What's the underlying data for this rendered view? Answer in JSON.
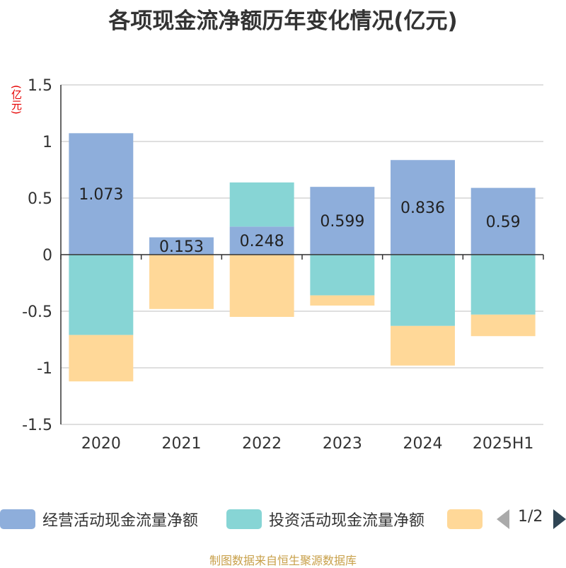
{
  "title": "各项现金流净额历年变化情况(亿元)",
  "unit_label": "(亿元)",
  "source": "制图数据来自恒生聚源数据库",
  "legend": {
    "items": [
      {
        "label": "经营活动现金流量净额",
        "color": "#8eaedb"
      },
      {
        "label": "投资活动现金流量净额",
        "color": "#87d5d5"
      },
      {
        "label": "",
        "color": "#ffd898"
      }
    ],
    "page": "1/2"
  },
  "chart_data": {
    "type": "bar",
    "stacked": true,
    "categories": [
      "2020",
      "2021",
      "2022",
      "2023",
      "2024",
      "2025H1"
    ],
    "ylim": [
      -1.5,
      1.5
    ],
    "yticks": [
      1.5,
      1,
      0.5,
      0,
      -0.5,
      -1,
      -1.5
    ],
    "grid": true,
    "legend_position": "bottom",
    "series": [
      {
        "name": "经营活动现金流量净额",
        "color": "#8eaedb",
        "values": [
          1.073,
          0.153,
          0.248,
          0.599,
          0.836,
          0.59
        ],
        "labels": [
          "1.073",
          "0.153",
          "0.248",
          "0.599",
          "0.836",
          "0.59"
        ]
      },
      {
        "name": "投资活动现金流量净额",
        "color": "#87d5d5",
        "values": [
          -0.71,
          0,
          0.39,
          -0.36,
          -0.63,
          -0.53
        ]
      },
      {
        "color": "#ffd898",
        "values": [
          -0.41,
          -0.48,
          -0.55,
          -0.09,
          -0.35,
          -0.19
        ]
      }
    ]
  }
}
